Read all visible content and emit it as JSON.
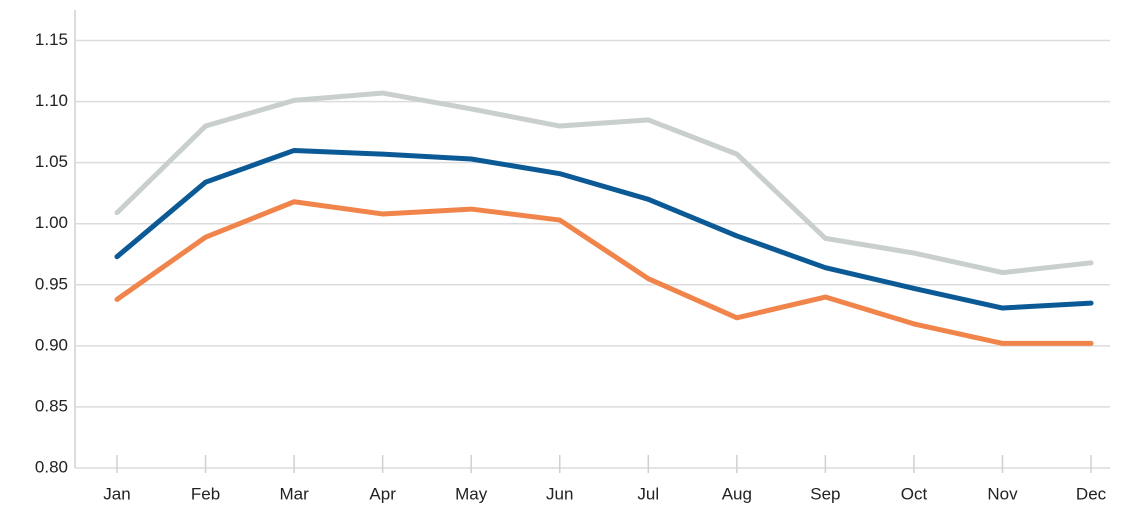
{
  "chart_data": {
    "type": "line",
    "categories": [
      "Jan",
      "Feb",
      "Mar",
      "Apr",
      "May",
      "Jun",
      "Jul",
      "Aug",
      "Sep",
      "Oct",
      "Nov",
      "Dec"
    ],
    "series": [
      {
        "color": "#c9cfcc",
        "values": [
          1.009,
          1.08,
          1.101,
          1.107,
          1.094,
          1.08,
          1.085,
          1.057,
          0.988,
          0.976,
          0.96,
          0.968
        ]
      },
      {
        "color": "#0b5a96",
        "values": [
          0.973,
          1.034,
          1.06,
          1.057,
          1.053,
          1.041,
          1.02,
          0.99,
          0.964,
          0.947,
          0.931,
          0.935
        ]
      },
      {
        "color": "#f0844a",
        "values": [
          0.938,
          0.989,
          1.018,
          1.008,
          1.012,
          1.003,
          0.955,
          0.923,
          0.94,
          0.918,
          0.902,
          0.902
        ]
      }
    ],
    "ylim": [
      0.8,
      1.175
    ],
    "yticks": [
      {
        "value": 0.8,
        "label": "0.80"
      },
      0.85,
      {
        "value": 0.9,
        "label": "0.90"
      },
      0.95,
      {
        "value": 1.0,
        "label": "1.00"
      },
      1.05,
      {
        "value": 1.1,
        "label": "1.10"
      },
      1.15
    ],
    "grid": true
  }
}
